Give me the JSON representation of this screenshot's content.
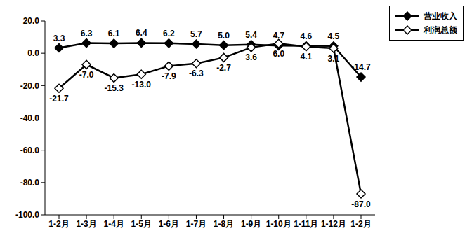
{
  "chart_data": {
    "type": "line",
    "categories": [
      "1-2月",
      "1-3月",
      "1-4月",
      "1-5月",
      "1-6月",
      "1-7月",
      "1-8月",
      "1-9月",
      "1-10月",
      "1-11月",
      "1-12月",
      "1-2月"
    ],
    "series": [
      {
        "name": "营业收入",
        "color": "#000000",
        "marker": "diamond",
        "line_style": "solid",
        "values": [
          3.3,
          6.3,
          6.1,
          6.4,
          6.2,
          5.7,
          5.0,
          5.4,
          4.7,
          4.6,
          4.5,
          -14.7
        ],
        "value_labels": [
          "3.3",
          "6.3",
          "6.1",
          "6.4",
          "6.2",
          "5.7",
          "5.0",
          "5.4",
          "4.7",
          "4.6",
          "4.5",
          "-14.7"
        ]
      },
      {
        "name": "利润总额",
        "color": "#000000",
        "marker": "diamond_open",
        "line_style": "solid",
        "values": [
          -21.7,
          -7.0,
          -15.3,
          -13.0,
          -7.9,
          -6.3,
          -2.7,
          3.6,
          6.0,
          4.1,
          3.1,
          -87.0
        ],
        "value_labels": [
          "-21.7",
          "-7.0",
          "-15.3",
          "-13.0",
          "-7.9",
          "-6.3",
          "-2.7",
          "3.6",
          "6.0",
          "4.1",
          "3.1",
          "-87.0"
        ]
      }
    ],
    "ylim": [
      -100,
      20
    ],
    "yticks": [
      {
        "value": 20,
        "label": "20.0"
      },
      {
        "value": 0,
        "label": "0.0"
      },
      {
        "value": -20,
        "label": "-20.0"
      },
      {
        "value": -40,
        "label": "-40.0"
      },
      {
        "value": -60,
        "label": "-60.0"
      },
      {
        "value": -80,
        "label": "-80.0"
      },
      {
        "value": -100,
        "label": "-100.0"
      }
    ],
    "grid": false,
    "legend": "upper right",
    "data_labels": true
  }
}
